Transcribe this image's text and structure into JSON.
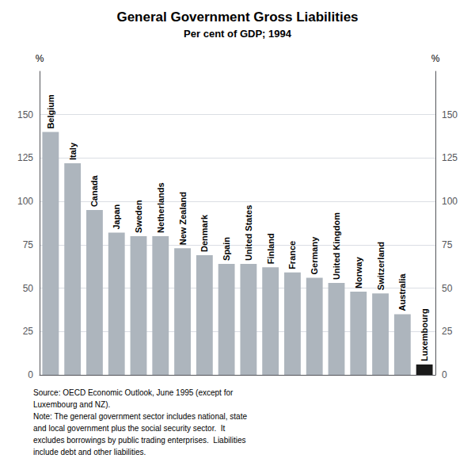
{
  "chart_data": {
    "type": "bar",
    "title": "General Government Gross Liabilities",
    "subtitle": "Per cent of GDP; 1994",
    "categories": [
      "Belgium",
      "Italy",
      "Canada",
      "Japan",
      "Sweden",
      "Netherlands",
      "New Zealand",
      "Denmark",
      "Spain",
      "United States",
      "Finland",
      "France",
      "Germany",
      "United Kingdom",
      "Norway",
      "Switzerland",
      "Australia",
      "Luxembourg"
    ],
    "values": [
      140,
      122,
      95,
      82,
      80,
      80,
      73,
      69,
      64,
      64,
      62,
      59,
      56,
      53,
      48,
      47,
      35,
      6
    ],
    "colors": [
      "#adb5bd",
      "#adb5bd",
      "#adb5bd",
      "#adb5bd",
      "#adb5bd",
      "#adb5bd",
      "#adb5bd",
      "#adb5bd",
      "#adb5bd",
      "#adb5bd",
      "#adb5bd",
      "#adb5bd",
      "#adb5bd",
      "#adb5bd",
      "#adb5bd",
      "#adb5bd",
      "#adb5bd",
      "#1a1a1a"
    ],
    "ylim": [
      0,
      175
    ],
    "yticks": [
      0,
      25,
      50,
      75,
      100,
      125,
      150
    ],
    "y2lim": [
      0,
      175
    ],
    "y2ticks": [
      0,
      25,
      50,
      75,
      100,
      125,
      150
    ],
    "ylabel": "%",
    "y2label": "%",
    "grid": true,
    "tick_labels": "y",
    "annotations": [
      "Source: OECD Economic Outlook, June 1995 (except for",
      "Luxembourg and NZ).",
      "Note: The general government sector includes national, state",
      "and local government plus the social security sector.  It",
      "excludes borrowings by public trading enterprises.  Liabilities",
      "include debt and other liabilities."
    ]
  }
}
